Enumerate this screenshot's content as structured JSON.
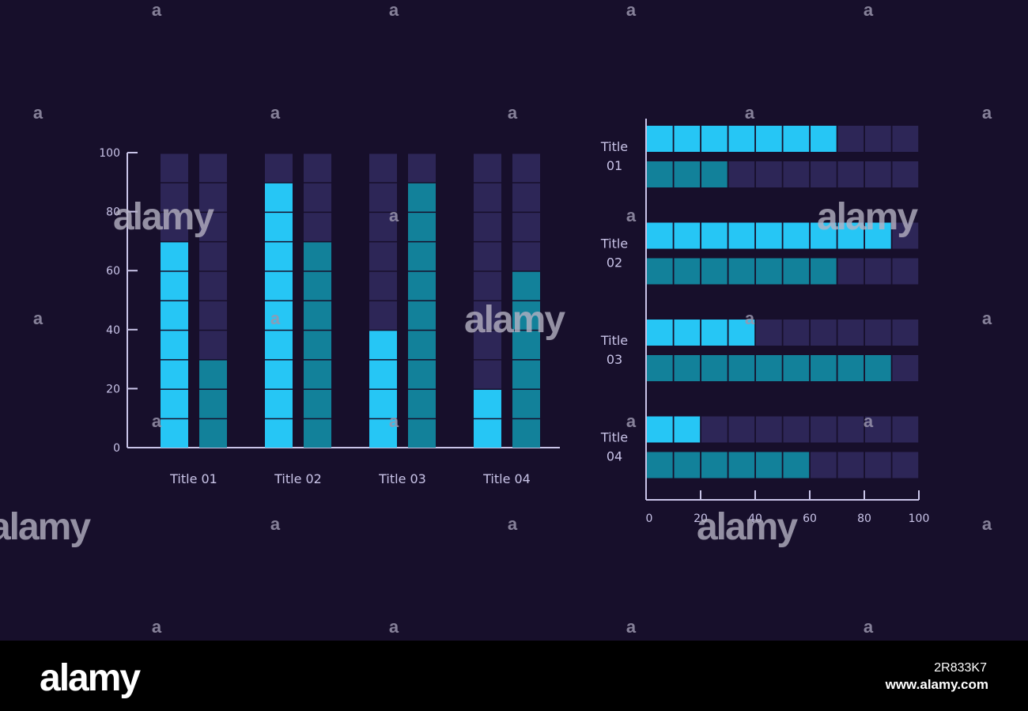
{
  "colors": {
    "background": "#170f2b",
    "empty": "#2d2657",
    "series_a": "#26c6f5",
    "series_b": "#12819a",
    "axis": "#c9c4e8",
    "text": "#c9c4e8"
  },
  "chart_data": [
    {
      "type": "bar",
      "orientation": "vertical",
      "categories": [
        "Title 01",
        "Title 02",
        "Title 03",
        "Title 04"
      ],
      "series": [
        {
          "values": [
            70,
            90,
            40,
            20
          ]
        },
        {
          "values": [
            30,
            70,
            90,
            60
          ]
        }
      ],
      "yticks": [
        "0",
        "20",
        "40",
        "60",
        "80",
        "100"
      ],
      "ylim": [
        0,
        100
      ]
    },
    {
      "type": "bar",
      "orientation": "horizontal",
      "categories": [
        "Title 01",
        "Title 02",
        "Title 03",
        "Title 04"
      ],
      "series": [
        {
          "values": [
            70,
            90,
            40,
            20
          ]
        },
        {
          "values": [
            30,
            70,
            90,
            60
          ]
        }
      ],
      "xticks": [
        "0",
        "20",
        "40",
        "60",
        "80",
        "100"
      ],
      "xlim": [
        0,
        100
      ]
    }
  ],
  "watermark": {
    "brand": "alamy",
    "image_id": "2R833K7",
    "url": "www.alamy.com"
  }
}
